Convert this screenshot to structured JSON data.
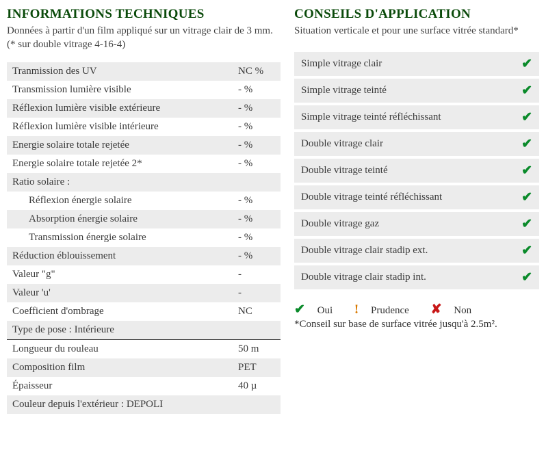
{
  "left": {
    "title": "INFORMATIONS TECHNIQUES",
    "subtitle": "Données à partir d'un film appliqué sur un vitrage clair de 3 mm. (* sur double vitrage 4-16-4)",
    "rows": [
      {
        "label": "Tranmission des UV",
        "value": "NC %",
        "indent": false
      },
      {
        "label": "Transmission lumière visible",
        "value": "- %",
        "indent": false
      },
      {
        "label": "Réflexion lumière visible extérieure",
        "value": "- %",
        "indent": false
      },
      {
        "label": "Réflexion lumière visible intérieure",
        "value": "- %",
        "indent": false
      },
      {
        "label": "Energie solaire totale rejetée",
        "value": "- %",
        "indent": false
      },
      {
        "label": "Energie solaire totale rejetée 2*",
        "value": "- %",
        "indent": false
      },
      {
        "label": "Ratio solaire :",
        "value": "",
        "indent": false
      },
      {
        "label": "Réflexion énergie solaire",
        "value": "- %",
        "indent": true
      },
      {
        "label": "Absorption énergie solaire",
        "value": "- %",
        "indent": true
      },
      {
        "label": "Transmission énergie solaire",
        "value": "- %",
        "indent": true
      },
      {
        "label": "Réduction éblouissement",
        "value": "- %",
        "indent": false
      },
      {
        "label": "Valeur \"g\"",
        "value": "-",
        "indent": false
      },
      {
        "label": "Valeur 'u'",
        "value": "-",
        "indent": false
      },
      {
        "label": "Coefficient d'ombrage",
        "value": "NC",
        "indent": false
      },
      {
        "label": "Type de pose : Intérieure",
        "value": "",
        "indent": false
      }
    ],
    "rows2": [
      {
        "label": "Longueur du rouleau",
        "value": "50 m"
      },
      {
        "label": "Composition film",
        "value": "PET"
      },
      {
        "label": "Épaisseur",
        "value": "40 µ"
      },
      {
        "label": "Couleur depuis l'extérieur : DEPOLI",
        "value": ""
      }
    ]
  },
  "right": {
    "title": "CONSEILS D'APPLICATION",
    "subtitle": "Situation verticale et pour une surface vitrée standard*",
    "rows": [
      {
        "label": "Simple vitrage clair",
        "status": "oui"
      },
      {
        "label": "Simple vitrage teinté",
        "status": "oui"
      },
      {
        "label": "Simple vitrage teinté réfléchissant",
        "status": "oui"
      },
      {
        "label": "Double vitrage clair",
        "status": "oui"
      },
      {
        "label": "Double vitrage teinté",
        "status": "oui"
      },
      {
        "label": "Double vitrage teinté réfléchissant",
        "status": "oui"
      },
      {
        "label": "Double vitrage gaz",
        "status": "oui"
      },
      {
        "label": "Double vitrage clair stadip ext.",
        "status": "oui"
      },
      {
        "label": "Double vitrage clair stadip int.",
        "status": "oui"
      }
    ],
    "legend": {
      "oui": "Oui",
      "prudence": "Prudence",
      "non": "Non",
      "note": "*Conseil sur base de surface vitrée jusqu'à 2.5m²."
    }
  },
  "icons": {
    "oui": "✔",
    "prudence": "!",
    "non": "✘"
  }
}
